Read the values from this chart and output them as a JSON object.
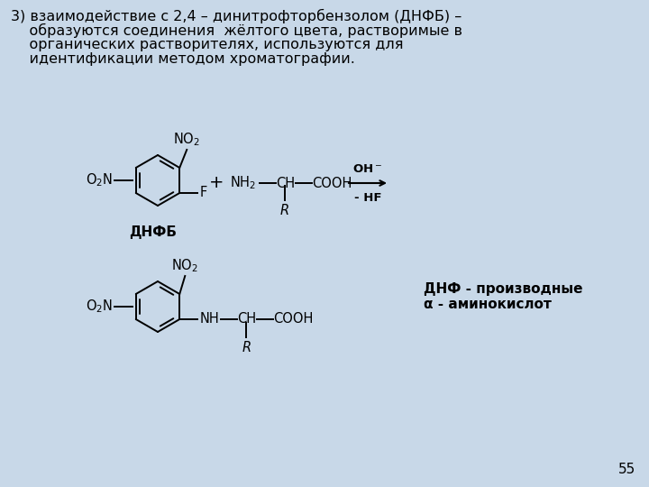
{
  "bg_color": "#c8d8e8",
  "text_color": "#000000",
  "title_lines": [
    "3) взаимодействие с 2,4 – динитрофторбензолом (ДНФБ) –",
    "    образуются соединения  жёлтого цвета, растворимые в",
    "    органических растворителях, используются для",
    "    идентификации методом хроматографии."
  ],
  "label_dnfb": "ДНФБ",
  "label_dnf": "ДНФ - производные",
  "label_amino": "α - аминокислот",
  "page_num": "55",
  "font_size_title": 11.5,
  "font_size_chem": 11,
  "font_size_small": 10.5
}
